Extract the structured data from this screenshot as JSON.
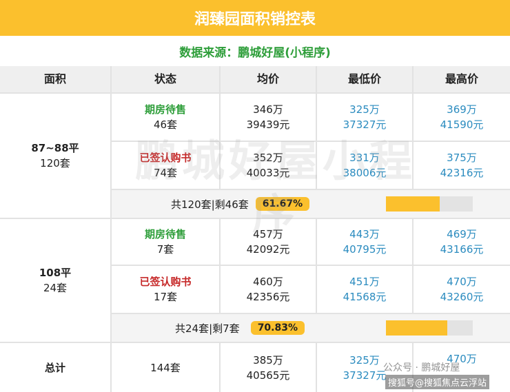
{
  "title": "润臻园面积销控表",
  "source": "数据来源：鹏城好屋(小程序)",
  "headers": [
    "面积",
    "状态",
    "均价",
    "最低价",
    "最高价"
  ],
  "groups": [
    {
      "area": "87~88平",
      "units": "120套",
      "rows": [
        {
          "status": "期房待售",
          "count": "46套",
          "avg_total": "346万",
          "avg_unit": "39439元",
          "min_total": "325万",
          "min_unit": "37327元",
          "max_total": "369万",
          "max_unit": "41590元"
        },
        {
          "status": "已签认购书",
          "count": "74套",
          "avg_total": "352万",
          "avg_unit": "40033元",
          "min_total": "331万",
          "min_unit": "38006元",
          "max_total": "375万",
          "max_unit": "42316元"
        }
      ],
      "summary": {
        "text": "共120套|剩46套",
        "percent": "61.67%",
        "fill": 0.6167
      }
    },
    {
      "area": "108平",
      "units": "24套",
      "rows": [
        {
          "status": "期房待售",
          "count": "7套",
          "avg_total": "457万",
          "avg_unit": "42092元",
          "min_total": "443万",
          "min_unit": "40795元",
          "max_total": "469万",
          "max_unit": "43166元"
        },
        {
          "status": "已签认购书",
          "count": "17套",
          "avg_total": "460万",
          "avg_unit": "42356元",
          "min_total": "451万",
          "min_unit": "41568元",
          "max_total": "470万",
          "max_unit": "43260元"
        }
      ],
      "summary": {
        "text": "共24套|剩7套",
        "percent": "70.83%",
        "fill": 0.7083
      }
    }
  ],
  "total": {
    "label": "总计",
    "count": "144套",
    "avg_total": "385万",
    "avg_unit": "40565元",
    "min_total": "325万",
    "min_unit": "37327元",
    "max_total": "470万",
    "max_unit": ""
  },
  "watermark": "鹏城好屋小程序",
  "footer": {
    "account": "公众号 · 鹏城好屋",
    "site": "搜狐号@搜狐焦点云浮站"
  },
  "colors": {
    "accent": "#fbc02d",
    "green": "#2e9e3a",
    "red": "#c62828",
    "blue": "#2a8bbf"
  }
}
